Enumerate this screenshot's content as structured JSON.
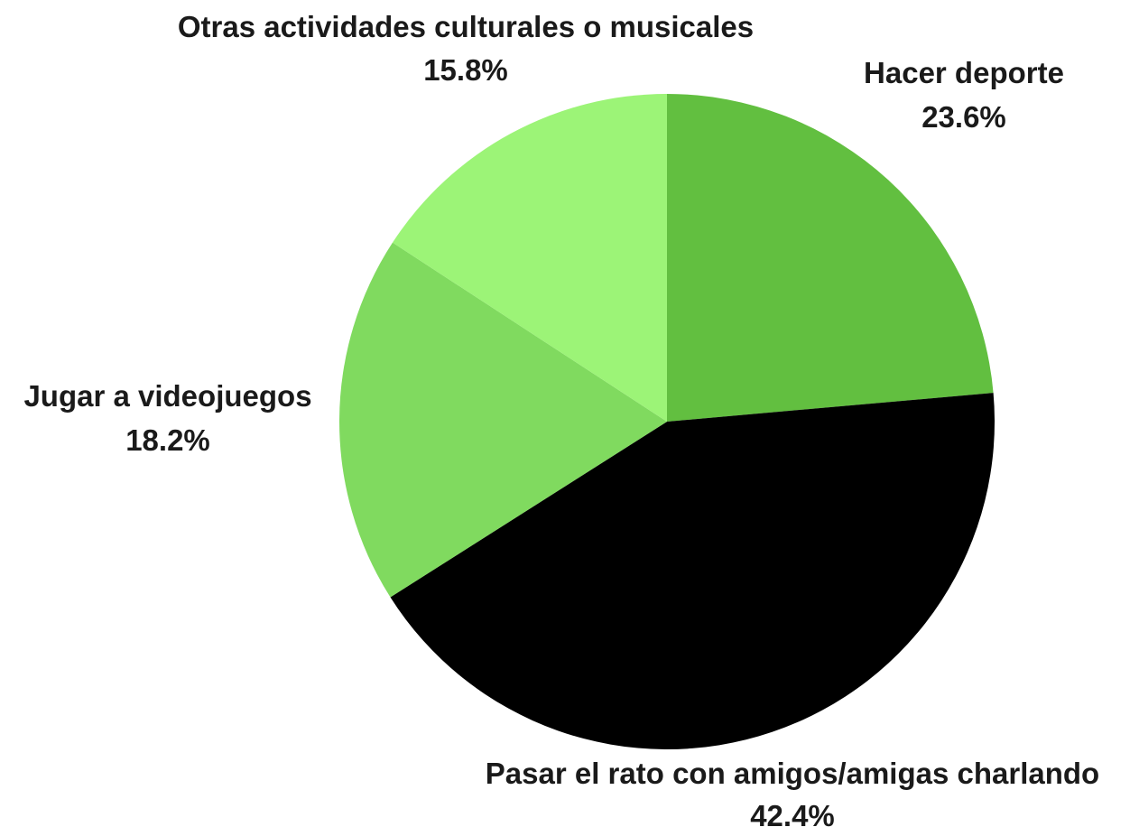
{
  "chart_data": {
    "type": "pie",
    "start": "12 o'clock, clockwise",
    "slices": [
      {
        "label": "Hacer deporte",
        "value": 23.6,
        "value_label": "23.6%",
        "color": "#62bf40"
      },
      {
        "label": "Pasar el rato con amigos/amigas charlando",
        "value": 42.4,
        "value_label": "42.4%",
        "color": "#000000"
      },
      {
        "label": "Jugar a videojuegos",
        "value": 18.2,
        "value_label": "18.2%",
        "color": "#80da5f"
      },
      {
        "label": "Otras actividades culturales o musicales",
        "value": 15.8,
        "value_label": "15.8%",
        "color": "#9cf477"
      }
    ]
  }
}
